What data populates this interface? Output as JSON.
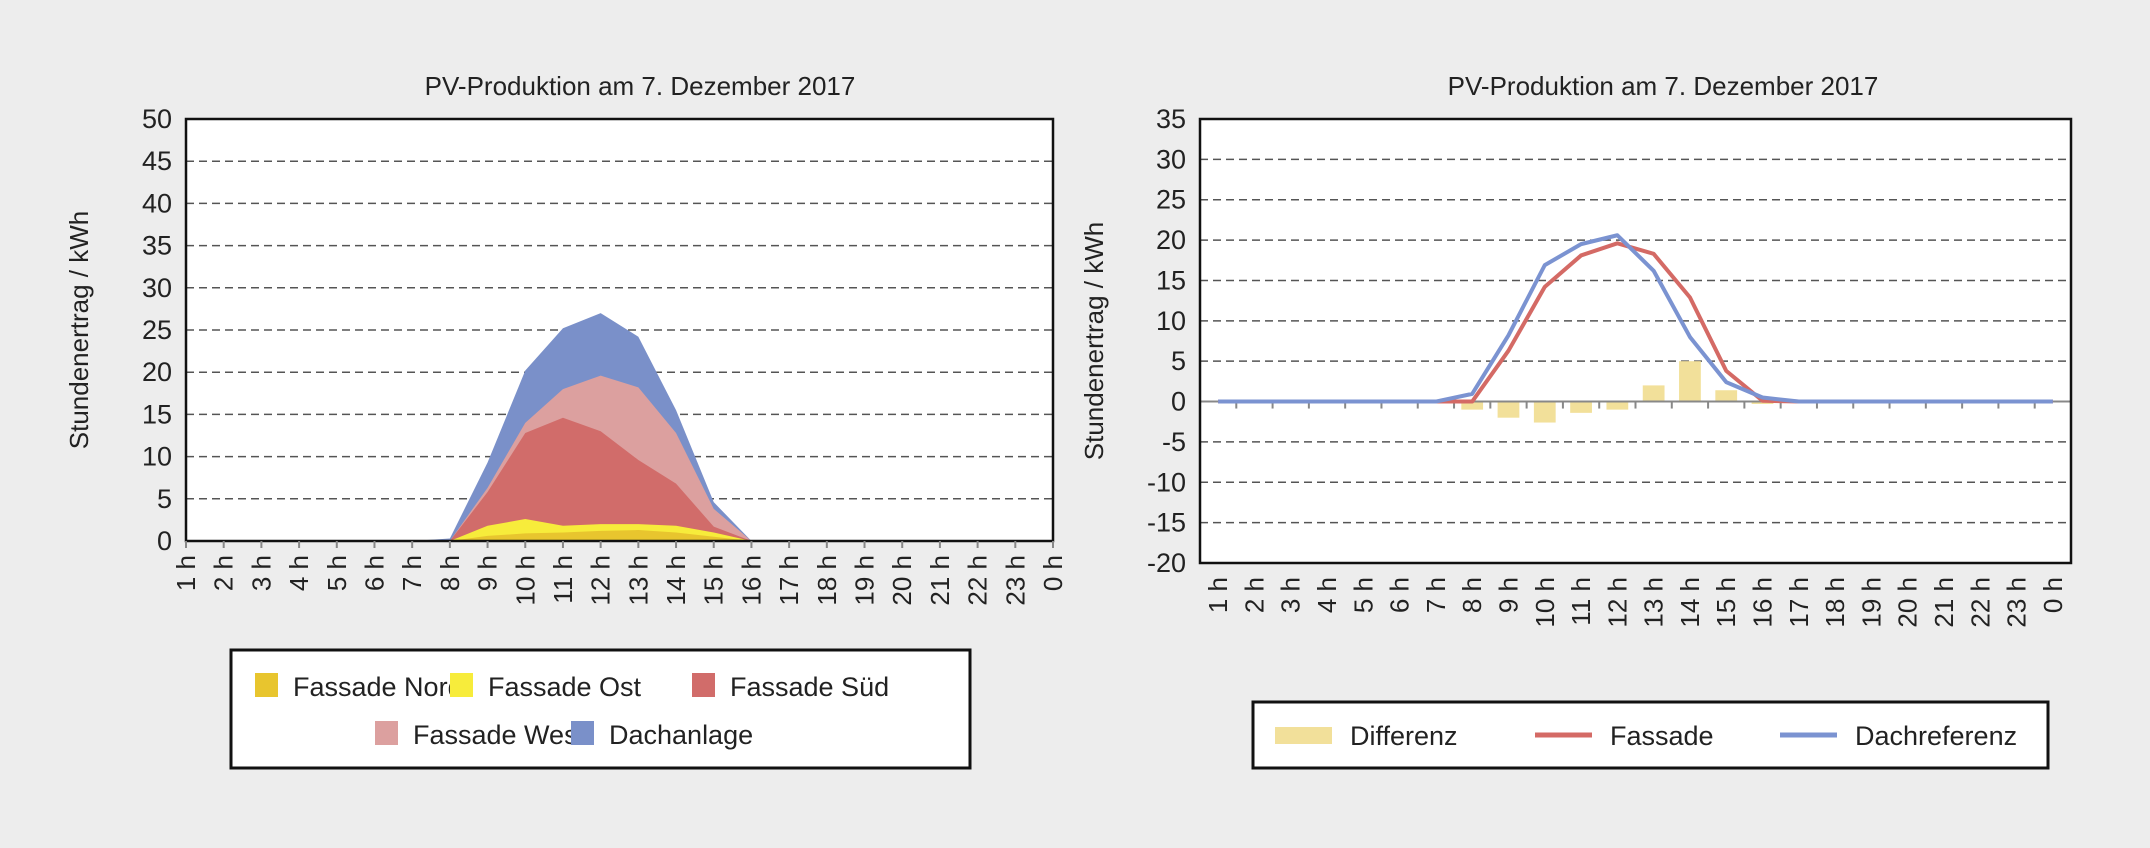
{
  "hours": [
    "1 h",
    "2 h",
    "3 h",
    "4 h",
    "5 h",
    "6 h",
    "7 h",
    "8 h",
    "9 h",
    "10 h",
    "11 h",
    "12 h",
    "13 h",
    "14 h",
    "15 h",
    "16 h",
    "17 h",
    "18 h",
    "19 h",
    "20 h",
    "21 h",
    "22 h",
    "23 h",
    "0 h"
  ],
  "chart_data": [
    {
      "type": "area",
      "stacked": true,
      "title": "PV-Produktion am 7. Dezember 2017",
      "xlabel": "",
      "ylabel": "Stundenertrag / kWh",
      "ylim": [
        0,
        50
      ],
      "yticks": [
        0,
        5,
        10,
        15,
        20,
        25,
        30,
        35,
        40,
        45,
        50
      ],
      "grid": true,
      "legend": "bottom",
      "series": [
        {
          "name": "Fassade Nord",
          "color": "#e8c52e",
          "values": [
            0,
            0,
            0,
            0,
            0,
            0,
            0,
            0,
            0.6,
            0.9,
            1.0,
            1.2,
            1.3,
            1.0,
            0.5,
            0,
            0,
            0,
            0,
            0,
            0,
            0,
            0,
            0
          ]
        },
        {
          "name": "Fassade Ost",
          "color": "#f7ec3b",
          "values": [
            0,
            0,
            0,
            0,
            0,
            0,
            0,
            0,
            1.2,
            1.7,
            0.8,
            0.8,
            0.7,
            0.8,
            0.5,
            0,
            0,
            0,
            0,
            0,
            0,
            0,
            0,
            0
          ]
        },
        {
          "name": "Fassade Süd",
          "color": "#d16c6a",
          "values": [
            0,
            0,
            0,
            0,
            0,
            0,
            0,
            0,
            4.0,
            10.2,
            12.8,
            11.0,
            7.6,
            5.0,
            0.7,
            0,
            0,
            0,
            0,
            0,
            0,
            0,
            0,
            0
          ]
        },
        {
          "name": "Fassade West",
          "color": "#dca09f",
          "values": [
            0,
            0,
            0,
            0,
            0,
            0,
            0,
            0,
            0.5,
            1.2,
            3.4,
            6.6,
            8.6,
            6.0,
            2.1,
            0,
            0,
            0,
            0,
            0,
            0,
            0,
            0,
            0
          ]
        },
        {
          "name": "Dachanlage",
          "color": "#7a90c9",
          "values": [
            0,
            0,
            0,
            0,
            0,
            0,
            0,
            0.3,
            3.0,
            6.2,
            7.2,
            7.4,
            6.0,
            2.7,
            0.8,
            0,
            0,
            0,
            0,
            0,
            0,
            0,
            0,
            0
          ]
        }
      ]
    },
    {
      "type": "bar+line",
      "title": "PV-Produktion am 7. Dezember 2017",
      "xlabel": "",
      "ylabel": "Stundenertrag / kWh",
      "ylim": [
        -20,
        35
      ],
      "yticks": [
        -20,
        -15,
        -10,
        -5,
        0,
        5,
        10,
        15,
        20,
        25,
        30,
        35
      ],
      "grid": true,
      "legend": "bottom",
      "series": [
        {
          "name": "Differenz",
          "kind": "bar",
          "color": "#f2e09a",
          "values": [
            0,
            0,
            0,
            0,
            0,
            0,
            0,
            -1.0,
            -2.0,
            -2.6,
            -1.4,
            -1.0,
            2.0,
            5.0,
            1.4,
            -0.3,
            0,
            0,
            0,
            0,
            0,
            0,
            0,
            0
          ]
        },
        {
          "name": "Fassade",
          "kind": "line",
          "color": "#d46a65",
          "values": [
            0,
            0,
            0,
            0,
            0,
            0,
            0,
            0,
            6.3,
            14.2,
            18.1,
            19.6,
            18.3,
            12.9,
            3.8,
            0.1,
            0,
            0,
            0,
            0,
            0,
            0,
            0,
            0
          ]
        },
        {
          "name": "Dachreferenz",
          "kind": "line",
          "color": "#7b93d1",
          "values": [
            0,
            0,
            0,
            0,
            0,
            0,
            0,
            0.95,
            8.2,
            16.9,
            19.5,
            20.6,
            16.2,
            8.0,
            2.4,
            0.5,
            0,
            0,
            0,
            0,
            0,
            0,
            0,
            0
          ]
        }
      ]
    }
  ]
}
